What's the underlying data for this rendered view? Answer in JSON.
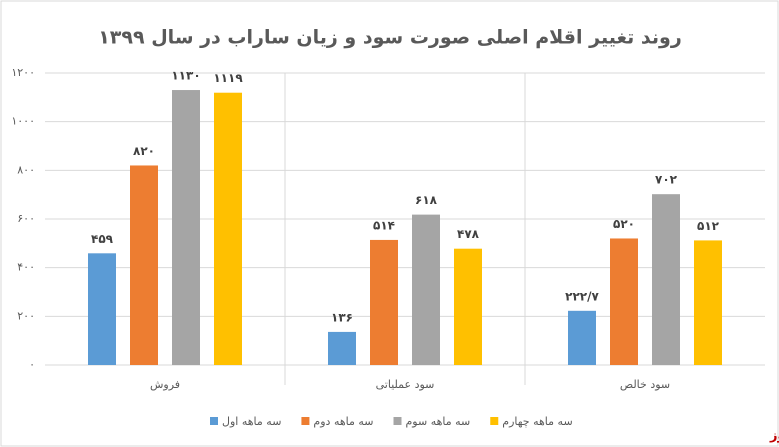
{
  "chart_data": {
    "type": "bar",
    "title": "روند تغییر اقلام اصلی صورت سود و زیان ساراب در سال ۱۳۹۹",
    "categories": [
      "فروش",
      "سود عملیاتی",
      "سود خالص"
    ],
    "series": [
      {
        "name": "سه ماهه اول",
        "color": "#5b9bd5",
        "values": [
          459,
          136,
          222.7
        ],
        "value_labels": [
          "۴۵۹",
          "۱۳۶",
          "۲۲۲/۷"
        ]
      },
      {
        "name": "سه ماهه دوم",
        "color": "#ed7d31",
        "values": [
          820,
          514,
          520
        ],
        "value_labels": [
          "۸۲۰",
          "۵۱۴",
          "۵۲۰"
        ]
      },
      {
        "name": "سه ماهه سوم",
        "color": "#a5a5a5",
        "values": [
          1130,
          618,
          702
        ],
        "value_labels": [
          "۱۱۳۰",
          "۶۱۸",
          "۷۰۲"
        ]
      },
      {
        "name": "سه ماهه چهارم",
        "color": "#ffc000",
        "values": [
          1119,
          478,
          512
        ],
        "value_labels": [
          "۱۱۱۹",
          "۴۷۸",
          "۵۱۲"
        ]
      }
    ],
    "ylim": [
      0,
      1200
    ],
    "yticks": [
      {
        "value": 0,
        "label": "۰"
      },
      {
        "value": 200,
        "label": "۲۰۰"
      },
      {
        "value": 400,
        "label": "۴۰۰"
      },
      {
        "value": 600,
        "label": "۶۰۰"
      },
      {
        "value": 800,
        "label": "۸۰۰"
      },
      {
        "value": 1000,
        "label": "۱۰۰۰"
      },
      {
        "value": 1200,
        "label": "۱۲۰۰"
      }
    ],
    "grid": true,
    "logo": "بورس نیوز"
  }
}
